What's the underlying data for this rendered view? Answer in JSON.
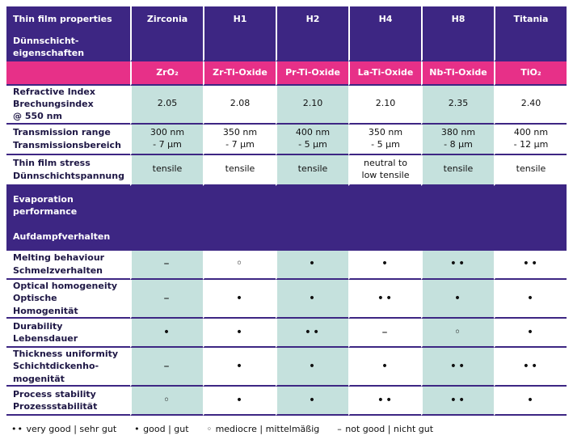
{
  "header": {
    "title_en": "Thin film properties",
    "title_de": "Dünnschicht-\neigenschaften",
    "columns": [
      "Zirconia",
      "H1",
      "H2",
      "H4",
      "H8",
      "Titania"
    ]
  },
  "formulas": [
    "ZrO₂",
    "Zr-Ti-Oxide",
    "Pr-Ti-Oxide",
    "La-Ti-Oxide",
    "Nb-Ti-Oxide",
    "TiO₂"
  ],
  "property_rows": [
    {
      "label": "Refractive Index\nBrechungsindex\n@ 550 nm",
      "values": [
        "2.05",
        "2.08",
        "2.10",
        "2.10",
        "2.35",
        "2.40"
      ]
    },
    {
      "label": "Transmission range\nTransmissionsbereich",
      "values": [
        "300 nm\n- 7 µm",
        "350 nm\n- 7 µm",
        "400 nm\n- 5 µm",
        "350 nm\n- 5 µm",
        "380 nm\n- 8 µm",
        "400 nm\n- 12 µm"
      ]
    },
    {
      "label": "Thin film stress\nDünnschichtspannung",
      "values": [
        "tensile",
        "tensile",
        "tensile",
        "neutral to\nlow tensile",
        "tensile",
        "tensile"
      ]
    }
  ],
  "section": {
    "title_en": "Evaporation\nperformance",
    "title_de": "Aufdampfverhalten"
  },
  "performance_rows": [
    {
      "label": "Melting behaviour\nSchmelzverhalten",
      "values": [
        "–",
        "◦",
        "•",
        "•",
        "••",
        "••"
      ]
    },
    {
      "label": "Optical homogeneity\nOptische\nHomogenität",
      "values": [
        "–",
        "•",
        "•",
        "••",
        "•",
        "•"
      ]
    },
    {
      "label": "Durability\nLebensdauer",
      "values": [
        "•",
        "•",
        "••",
        "–",
        "◦",
        "•"
      ]
    },
    {
      "label": "Thickness uniformity\nSchichtdickenho-\nmogenität",
      "values": [
        "–",
        "•",
        "•",
        "•",
        "••",
        "••"
      ]
    },
    {
      "label": "Process stability\nProzessstabilität",
      "values": [
        "◦",
        "•",
        "•",
        "••",
        "••",
        "•"
      ]
    }
  ],
  "legend": [
    {
      "symbol": "••",
      "label": "very good | sehr gut"
    },
    {
      "symbol": "•",
      "label": "good | gut"
    },
    {
      "symbol": "◦",
      "label": "mediocre | mittelmäßig"
    },
    {
      "symbol": "–",
      "label": "not good | nicht gut"
    }
  ],
  "colors": {
    "header_purple": "#3d2683",
    "formula_pink": "#e73088",
    "cell_teal": "#c5e1dd"
  }
}
